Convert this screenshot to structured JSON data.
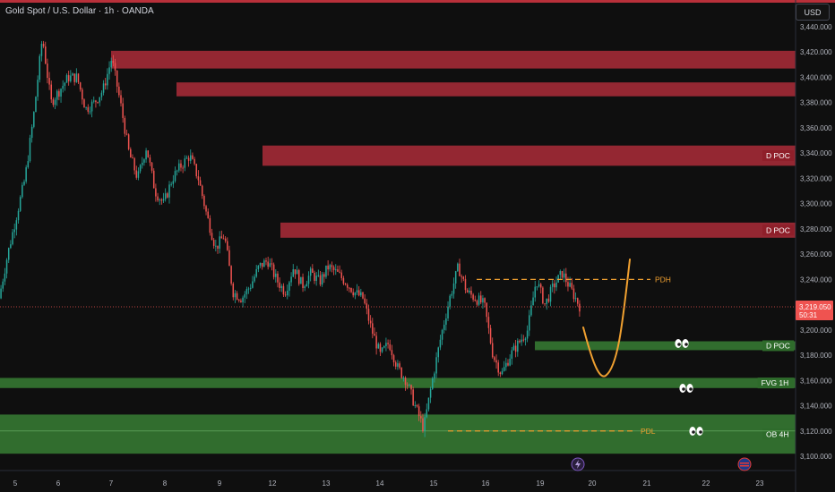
{
  "header": {
    "title": "Gold Spot / U.S. Dollar · 1h · OANDA",
    "currency": "USD"
  },
  "colors": {
    "up": "#26a69a",
    "down": "#ef5350",
    "supply": "#c2303f",
    "demand": "#3d8d3a",
    "level": "#f0a030",
    "bg": "#0f0f0f"
  },
  "chart_data": {
    "type": "candlestick",
    "instrument": "Gold Spot / U.S. Dollar",
    "interval": "1h",
    "source": "OANDA",
    "y_ticks": [
      "3,100.000",
      "3,120.000",
      "3,140.000",
      "3,160.000",
      "3,180.000",
      "3,200.000",
      "3,220.000",
      "3,240.000",
      "3,260.000",
      "3,280.000",
      "3,300.000",
      "3,320.000",
      "3,340.000",
      "3,360.000",
      "3,380.000",
      "3,400.000",
      "3,420.000",
      "3,440.000"
    ],
    "ylim": [
      3094,
      3450
    ],
    "x_ticks": [
      "5",
      "6",
      "7",
      "8",
      "9",
      "12",
      "13",
      "14",
      "15",
      "16",
      "19",
      "20",
      "21",
      "22",
      "23"
    ],
    "last_price": "3,219.050",
    "countdown": "50:31",
    "path_points": [
      [
        0,
        3225
      ],
      [
        0.5,
        3260
      ],
      [
        1,
        3290
      ],
      [
        1.5,
        3320
      ],
      [
        2,
        3370
      ],
      [
        2.5,
        3432
      ],
      [
        3,
        3380
      ],
      [
        3.5,
        3390
      ],
      [
        4,
        3400
      ],
      [
        4.5,
        3400
      ],
      [
        5,
        3375
      ],
      [
        5.5,
        3380
      ],
      [
        6,
        3390
      ],
      [
        6.5,
        3415
      ],
      [
        7,
        3380
      ],
      [
        7.5,
        3340
      ],
      [
        8,
        3320
      ],
      [
        8.5,
        3345
      ],
      [
        9,
        3310
      ],
      [
        9.5,
        3300
      ],
      [
        10,
        3320
      ],
      [
        10.5,
        3330
      ],
      [
        11,
        3338
      ],
      [
        11.5,
        3320
      ],
      [
        12,
        3290
      ],
      [
        12.5,
        3265
      ],
      [
        13,
        3275
      ],
      [
        13.5,
        3230
      ],
      [
        14,
        3225
      ],
      [
        14.5,
        3235
      ],
      [
        15,
        3250
      ],
      [
        15.5,
        3255
      ],
      [
        16,
        3240
      ],
      [
        16.5,
        3230
      ],
      [
        17,
        3250
      ],
      [
        17.5,
        3235
      ],
      [
        18,
        3245
      ],
      [
        18.5,
        3238
      ],
      [
        19,
        3250
      ],
      [
        19.5,
        3245
      ],
      [
        20,
        3238
      ],
      [
        20.5,
        3230
      ],
      [
        21,
        3225
      ],
      [
        21.5,
        3200
      ],
      [
        22,
        3180
      ],
      [
        22.5,
        3190
      ],
      [
        23,
        3170
      ],
      [
        23.5,
        3160
      ],
      [
        24,
        3140
      ],
      [
        24.5,
        3122
      ],
      [
        25,
        3160
      ],
      [
        25.5,
        3195
      ],
      [
        26,
        3225
      ],
      [
        26.5,
        3250
      ],
      [
        27,
        3230
      ],
      [
        27.5,
        3225
      ],
      [
        28,
        3220
      ],
      [
        28.5,
        3180
      ],
      [
        29,
        3165
      ],
      [
        29.5,
        3180
      ],
      [
        30,
        3190
      ],
      [
        30.5,
        3200
      ],
      [
        31,
        3240
      ],
      [
        31.5,
        3220
      ],
      [
        32,
        3235
      ],
      [
        32.5,
        3245
      ],
      [
        33,
        3232
      ],
      [
        33.5,
        3219
      ]
    ],
    "zones": [
      {
        "type": "supply",
        "top": 3421,
        "bottom": 3407,
        "label": ""
      },
      {
        "type": "supply",
        "top": 3396,
        "bottom": 3385,
        "label": ""
      },
      {
        "type": "supply",
        "top": 3346,
        "bottom": 3330,
        "label": "D POC"
      },
      {
        "type": "supply",
        "top": 3285,
        "bottom": 3273,
        "label": "D POC"
      },
      {
        "type": "demand",
        "top": 3191,
        "bottom": 3184,
        "label": "D POC"
      },
      {
        "type": "demand",
        "top": 3162,
        "bottom": 3154,
        "label": "FVG 1H"
      },
      {
        "type": "demand",
        "top": 3133,
        "bottom": 3102,
        "label": "OB 4H"
      }
    ],
    "levels": [
      {
        "label": "PDH",
        "price": 3240
      },
      {
        "label": "PDL",
        "price": 3120
      }
    ],
    "projection": {
      "color": "#f0a030"
    }
  }
}
